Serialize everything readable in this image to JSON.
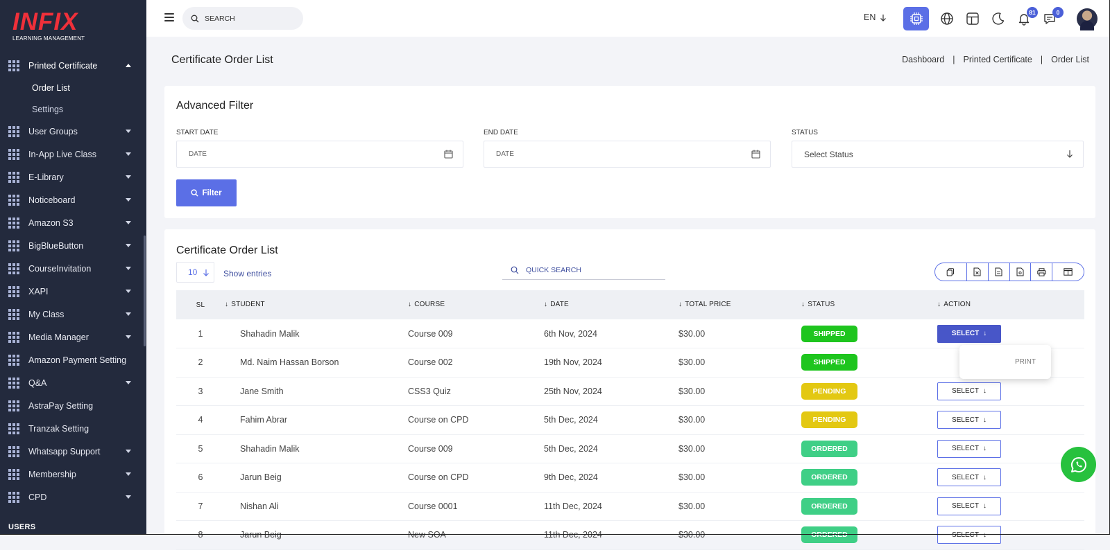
{
  "brand": {
    "logo_text": "INFIX",
    "logo_subtitle": "LEARNING MANAGEMENT"
  },
  "sidebar": {
    "open_section": {
      "label": "Printed Certificate"
    },
    "sub_items": [
      {
        "label": "Order List",
        "active": true
      },
      {
        "label": "Settings",
        "active": false
      }
    ],
    "items": [
      {
        "label": "User Groups",
        "has_caret": true
      },
      {
        "label": "In-App Live Class",
        "has_caret": true
      },
      {
        "label": "E-Library",
        "has_caret": true
      },
      {
        "label": "Noticeboard",
        "has_caret": true
      },
      {
        "label": "Amazon S3",
        "has_caret": true
      },
      {
        "label": "BigBlueButton",
        "has_caret": true
      },
      {
        "label": "CourseInvitation",
        "has_caret": true
      },
      {
        "label": "XAPI",
        "has_caret": true
      },
      {
        "label": "My Class",
        "has_caret": true
      },
      {
        "label": "Media Manager",
        "has_caret": true
      },
      {
        "label": "Amazon Payment Setting",
        "has_caret": false
      },
      {
        "label": "Q&A",
        "has_caret": true
      },
      {
        "label": "AstraPay Setting",
        "has_caret": false
      },
      {
        "label": "Tranzak Setting",
        "has_caret": false
      },
      {
        "label": "Whatsapp Support",
        "has_caret": true
      },
      {
        "label": "Membership",
        "has_caret": true
      },
      {
        "label": "CPD",
        "has_caret": true
      }
    ],
    "section_label": "USERS"
  },
  "header": {
    "search_placeholder": "SEARCH",
    "language": "EN",
    "notifications_count": "81",
    "messages_count": "0"
  },
  "page": {
    "title": "Certificate Order List",
    "breadcrumb": [
      "Dashboard",
      "Printed Certificate",
      "Order List"
    ]
  },
  "filter": {
    "title": "Advanced Filter",
    "start_date_label": "START DATE",
    "start_date_placeholder": "DATE",
    "end_date_label": "END DATE",
    "end_date_placeholder": "DATE",
    "status_label": "STATUS",
    "status_value": "Select Status",
    "button_label": "Filter"
  },
  "list": {
    "title": "Certificate Order List",
    "entries": "10",
    "show_entries_label": "Show entries",
    "quick_search_placeholder": "QUICK SEARCH",
    "columns": [
      "SL",
      "STUDENT",
      "COURSE",
      "DATE",
      "TOTAL PRICE",
      "STATUS",
      "ACTION"
    ],
    "rows": [
      {
        "sl": "1",
        "student": "Shahadin Malik",
        "course": "Course 009",
        "date": "6th Nov, 2024",
        "price": "$30.00",
        "status": "SHIPPED",
        "action": "SELECT"
      },
      {
        "sl": "2",
        "student": "Md. Naim Hassan Borson",
        "course": "Course 002",
        "date": "19th Nov, 2024",
        "price": "$30.00",
        "status": "SHIPPED",
        "action": ""
      },
      {
        "sl": "3",
        "student": "Jane Smith",
        "course": "CSS3 Quiz",
        "date": "25th Nov, 2024",
        "price": "$30.00",
        "status": "PENDING",
        "action": "SELECT"
      },
      {
        "sl": "4",
        "student": "Fahim Abrar",
        "course": "Course on CPD",
        "date": "5th Dec, 2024",
        "price": "$30.00",
        "status": "PENDING",
        "action": "SELECT"
      },
      {
        "sl": "5",
        "student": "Shahadin Malik",
        "course": "Course 009",
        "date": "5th Dec, 2024",
        "price": "$30.00",
        "status": "ORDERED",
        "action": "SELECT"
      },
      {
        "sl": "6",
        "student": "Jarun Beig",
        "course": "Course on CPD",
        "date": "9th Dec, 2024",
        "price": "$30.00",
        "status": "ORDERED",
        "action": "SELECT"
      },
      {
        "sl": "7",
        "student": "Nishan Ali",
        "course": "Course 0001",
        "date": "11th Dec, 2024",
        "price": "$30.00",
        "status": "ORDERED",
        "action": "SELECT"
      },
      {
        "sl": "8",
        "student": "Jarun Beig",
        "course": "New SOA",
        "date": "11th Dec, 2024",
        "price": "$30.00",
        "status": "ORDERED",
        "action": "SELECT"
      }
    ],
    "dropdown_item": "PRINT"
  },
  "colors": {
    "accent": "#5b6fe6",
    "sidebar_bg": "#232a3d",
    "shipped": "#1ec51e",
    "pending": "#e3c812",
    "ordered": "#3fcf86",
    "whatsapp": "#27c13e"
  }
}
